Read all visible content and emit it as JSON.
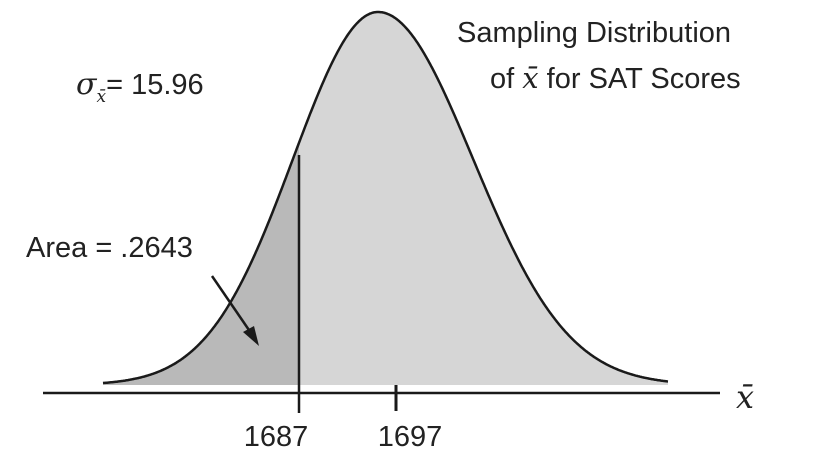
{
  "title": {
    "line1": "Sampling Distribution",
    "line2_prefix": "of ",
    "line2_var": "x̄",
    "line2_suffix": " for SAT Scores"
  },
  "sigma": {
    "symbol": "σ",
    "subscript": "x̄",
    "value_text": "= 15.96"
  },
  "area_label": "Area = .2643",
  "axis": {
    "variable": "x̄"
  },
  "ticks": [
    {
      "value": 1687,
      "label": "1687"
    },
    {
      "value": 1697,
      "label": "1697"
    }
  ],
  "distribution": {
    "mean": 1697,
    "std_error": 15.96,
    "shaded_left_of": 1687,
    "shaded_area": 0.2643
  },
  "colors": {
    "curve_fill": "#d6d6d6",
    "shaded_fill": "#b9b9b9",
    "line": "#1a1a1a"
  }
}
